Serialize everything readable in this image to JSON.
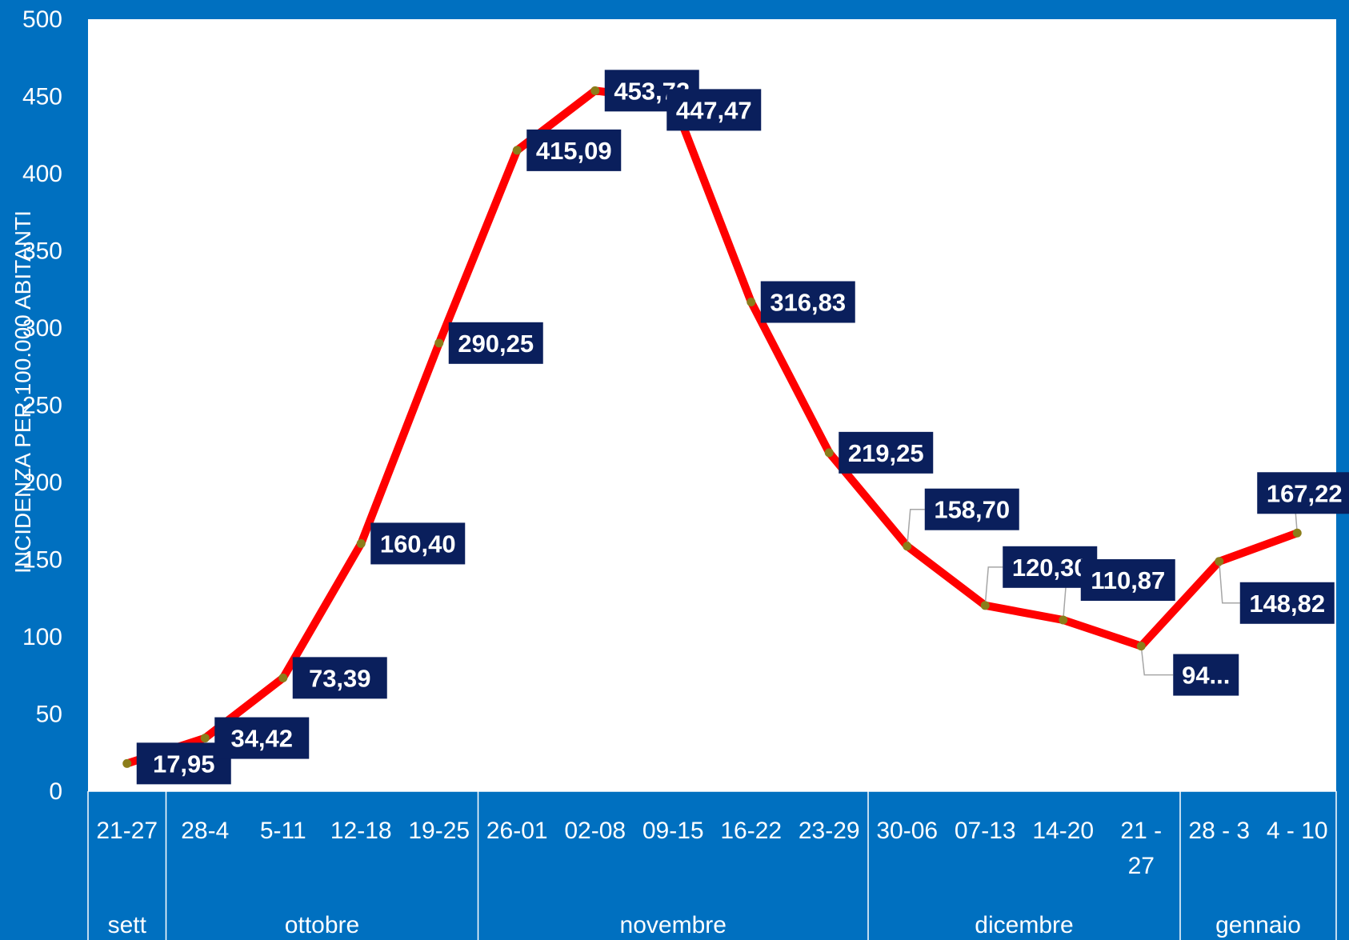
{
  "chart_data": {
    "type": "line",
    "title": "",
    "xlabel": "",
    "ylabel": "INCIDENZA PER 100.000 ABITANTI",
    "ylim": [
      0,
      500
    ],
    "yticks": [
      0,
      50,
      100,
      150,
      200,
      250,
      300,
      350,
      400,
      450,
      500
    ],
    "grid": false,
    "legend": "none",
    "categories": [
      "21-27",
      "28-4",
      "5-11",
      "12-18",
      "19-25",
      "26-01",
      "02-08",
      "09-15",
      "16-22",
      "23-29",
      "30-06",
      "07-13",
      "14-20",
      "21 - 27",
      "28 - 3",
      "4 - 10"
    ],
    "months": [
      {
        "name": "sett",
        "count": 1
      },
      {
        "name": "ottobre",
        "count": 4
      },
      {
        "name": "novembre",
        "count": 5
      },
      {
        "name": "dicembre",
        "count": 4
      },
      {
        "name": "gennaio",
        "count": 2
      }
    ],
    "series": [
      {
        "values": [
          17.95,
          34.42,
          73.39,
          160.4,
          290.25,
          415.09,
          453.72,
          447.47,
          316.83,
          219.25,
          158.7,
          120.3,
          110.87,
          94,
          148.82,
          167.22
        ],
        "data_labels": [
          "17,95",
          "34,42",
          "73,39",
          "160,40",
          "290,25",
          "415,09",
          "453,72",
          "447,47",
          "316,83",
          "219,25",
          "158,70",
          "120,30",
          "110,87",
          "94...",
          "148,82",
          "167,22"
        ]
      }
    ],
    "colors": {
      "background": "#0070C0",
      "plot_area": "#FFFFFF",
      "line": "#FF0000",
      "marker": "#8B7D1A",
      "label_box": "#0A1F5C",
      "text": "#FFFFFF"
    }
  }
}
